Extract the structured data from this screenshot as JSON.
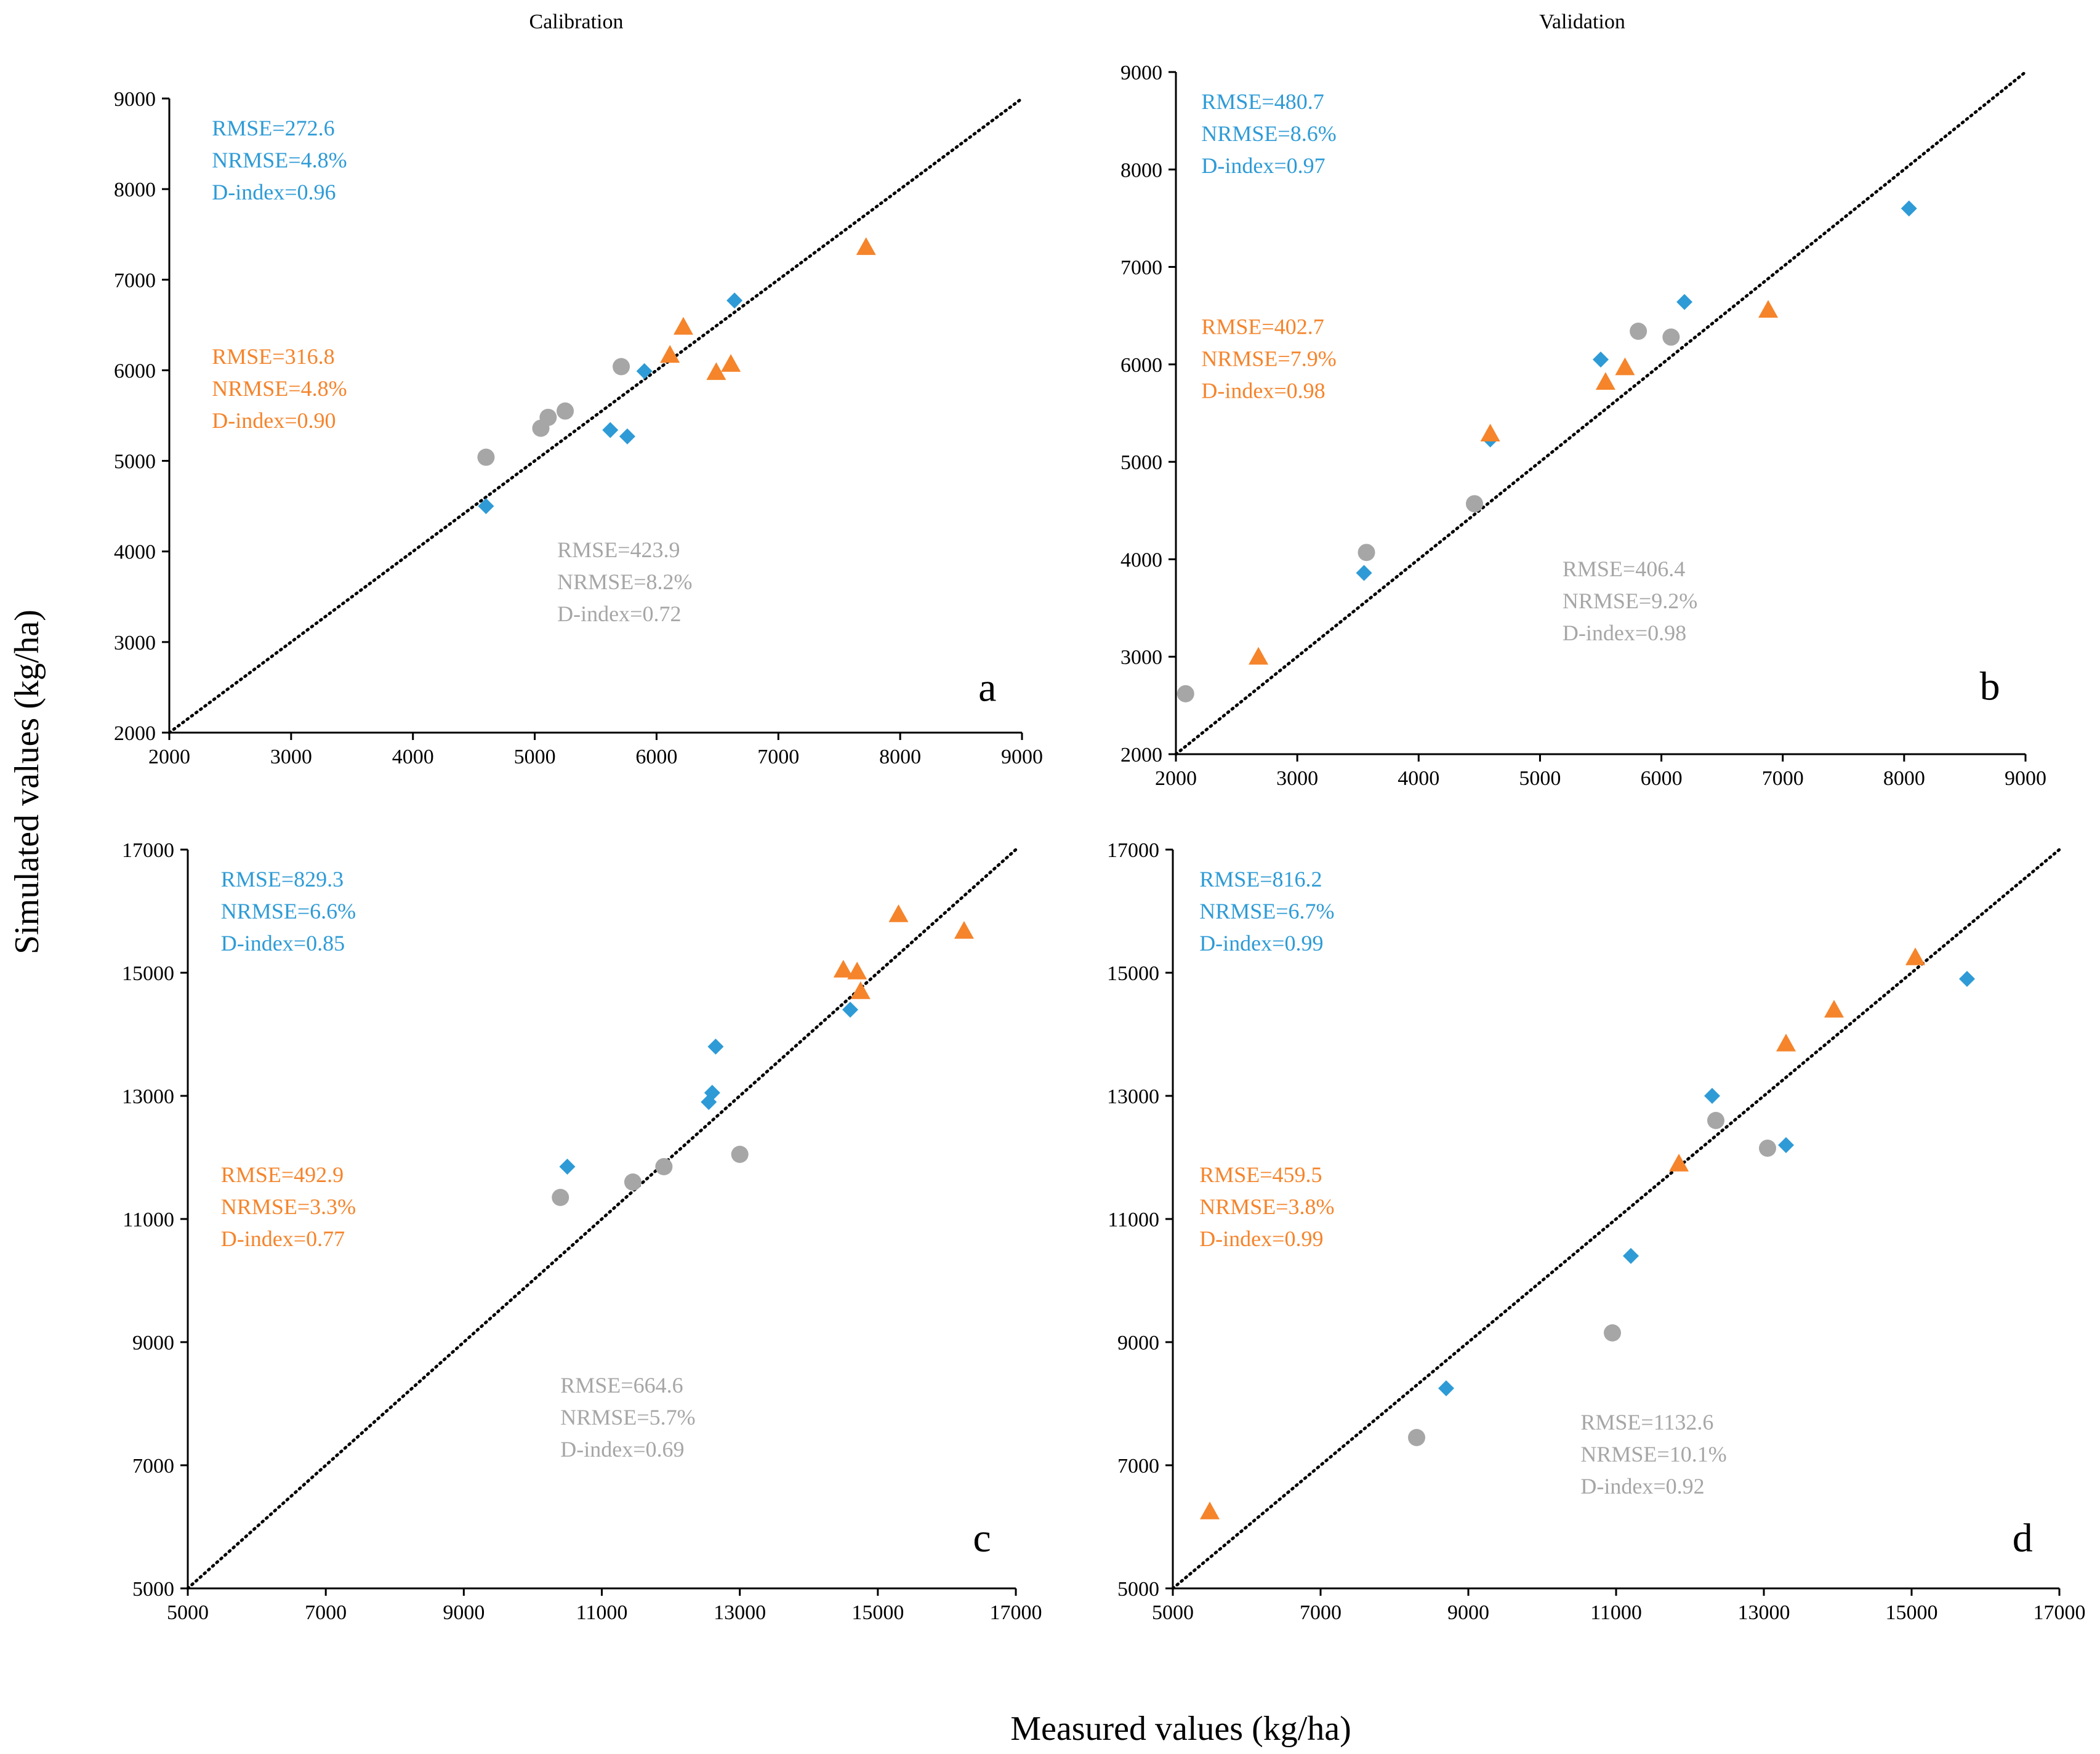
{
  "figure": {
    "xlabel": "Measured values (kg/ha)",
    "ylabel": "Simulated values (kg/ha)",
    "column_titles": [
      "Calibration",
      "Validation"
    ]
  },
  "colors": {
    "blue": "#2e9bd6",
    "orange": "#f5842b",
    "gray": "#a6a6a6",
    "axis": "#000000"
  },
  "chart_data": [
    {
      "panel": "a",
      "type": "scatter",
      "title": "Calibration",
      "xlim": [
        2000,
        9000
      ],
      "ylim": [
        2000,
        9000
      ],
      "xticks": [
        2000,
        3000,
        4000,
        5000,
        6000,
        7000,
        8000,
        9000
      ],
      "yticks": [
        2000,
        3000,
        4000,
        5000,
        6000,
        7000,
        8000,
        9000
      ],
      "one_to_one_line": true,
      "series": [
        {
          "name": "blue",
          "marker": "diamond",
          "color": "#2e9bd6",
          "x": [
            4600,
            5620,
            5760,
            5900,
            6640
          ],
          "y": [
            4500,
            5340,
            5270,
            5990,
            6770
          ]
        },
        {
          "name": "orange",
          "marker": "triangle",
          "color": "#f5842b",
          "x": [
            6110,
            6220,
            6490,
            6610,
            7720
          ],
          "y": [
            6170,
            6480,
            5980,
            6070,
            7360
          ]
        },
        {
          "name": "gray",
          "marker": "circle",
          "color": "#a6a6a6",
          "x": [
            4600,
            5050,
            5110,
            5250,
            5710
          ],
          "y": [
            5040,
            5360,
            5480,
            5550,
            6040
          ]
        }
      ],
      "stats": [
        {
          "series": "blue",
          "lines": [
            "RMSE=272.6",
            "NRMSE=4.8%",
            "D-index=0.96"
          ]
        },
        {
          "series": "orange",
          "lines": [
            "RMSE=316.8",
            "NRMSE=4.8%",
            "D-index=0.90"
          ]
        },
        {
          "series": "gray",
          "lines": [
            "RMSE=423.9",
            "NRMSE=8.2%",
            "D-index=0.72"
          ]
        }
      ]
    },
    {
      "panel": "b",
      "type": "scatter",
      "title": "Validation",
      "xlim": [
        2000,
        9000
      ],
      "ylim": [
        2000,
        9000
      ],
      "xticks": [
        2000,
        3000,
        4000,
        5000,
        6000,
        7000,
        8000,
        9000
      ],
      "yticks": [
        2000,
        3000,
        4000,
        5000,
        6000,
        7000,
        8000,
        9000
      ],
      "one_to_one_line": true,
      "series": [
        {
          "name": "blue",
          "marker": "diamond",
          "color": "#2e9bd6",
          "x": [
            3550,
            4590,
            5500,
            6190,
            8040
          ],
          "y": [
            3860,
            5230,
            6050,
            6640,
            7600
          ]
        },
        {
          "name": "orange",
          "marker": "triangle",
          "color": "#f5842b",
          "x": [
            2680,
            4590,
            5540,
            5700,
            6880
          ],
          "y": [
            3000,
            5290,
            5820,
            5970,
            6560
          ]
        },
        {
          "name": "gray",
          "marker": "circle",
          "color": "#a6a6a6",
          "x": [
            2080,
            3570,
            4460,
            5810,
            6080
          ],
          "y": [
            2620,
            4070,
            4570,
            6340,
            6280
          ]
        }
      ],
      "stats": [
        {
          "series": "blue",
          "lines": [
            "RMSE=480.7",
            "NRMSE=8.6%",
            "D-index=0.97"
          ]
        },
        {
          "series": "orange",
          "lines": [
            "RMSE=402.7",
            "NRMSE=7.9%",
            "D-index=0.98"
          ]
        },
        {
          "series": "gray",
          "lines": [
            "RMSE=406.4",
            "NRMSE=9.2%",
            "D-index=0.98"
          ]
        }
      ]
    },
    {
      "panel": "c",
      "type": "scatter",
      "title": "",
      "xlim": [
        5000,
        17000
      ],
      "ylim": [
        5000,
        17000
      ],
      "xticks": [
        5000,
        7000,
        9000,
        11000,
        13000,
        15000,
        17000
      ],
      "yticks": [
        5000,
        7000,
        9000,
        11000,
        13000,
        15000,
        17000
      ],
      "one_to_one_line": true,
      "series": [
        {
          "name": "blue",
          "marker": "diamond",
          "color": "#2e9bd6",
          "x": [
            10500,
            12550,
            12600,
            12650,
            14600
          ],
          "y": [
            11850,
            12900,
            13050,
            13800,
            14400
          ]
        },
        {
          "name": "orange",
          "marker": "triangle",
          "color": "#f5842b",
          "x": [
            14500,
            14700,
            14750,
            15300,
            16250
          ],
          "y": [
            15050,
            15020,
            14700,
            15950,
            15680
          ]
        },
        {
          "name": "gray",
          "marker": "circle",
          "color": "#a6a6a6",
          "x": [
            10400,
            11450,
            11900,
            13000
          ],
          "y": [
            11350,
            11600,
            11850,
            12050
          ]
        }
      ],
      "stats": [
        {
          "series": "blue",
          "lines": [
            "RMSE=829.3",
            "NRMSE=6.6%",
            "D-index=0.85"
          ]
        },
        {
          "series": "orange",
          "lines": [
            "RMSE=492.9",
            "NRMSE=3.3%",
            "D-index=0.77"
          ]
        },
        {
          "series": "gray",
          "lines": [
            "RMSE=664.6",
            "NRMSE=5.7%",
            "D-index=0.69"
          ]
        }
      ]
    },
    {
      "panel": "d",
      "type": "scatter",
      "title": "",
      "xlim": [
        5000,
        17000
      ],
      "ylim": [
        5000,
        17000
      ],
      "xticks": [
        5000,
        7000,
        9000,
        11000,
        13000,
        15000,
        17000
      ],
      "yticks": [
        5000,
        7000,
        9000,
        11000,
        13000,
        15000,
        17000
      ],
      "one_to_one_line": true,
      "series": [
        {
          "name": "blue",
          "marker": "diamond",
          "color": "#2e9bd6",
          "x": [
            8700,
            11200,
            12300,
            13300,
            15750
          ],
          "y": [
            8250,
            10400,
            13000,
            12200,
            14900
          ]
        },
        {
          "name": "orange",
          "marker": "triangle",
          "color": "#f5842b",
          "x": [
            5500,
            11850,
            13300,
            13950,
            15050
          ],
          "y": [
            6250,
            11900,
            13850,
            14400,
            15250
          ]
        },
        {
          "name": "gray",
          "marker": "circle",
          "color": "#a6a6a6",
          "x": [
            8300,
            10950,
            12350,
            13050
          ],
          "y": [
            7450,
            9150,
            12600,
            12150
          ]
        }
      ],
      "stats": [
        {
          "series": "blue",
          "lines": [
            "RMSE=816.2",
            "NRMSE=6.7%",
            "D-index=0.99"
          ]
        },
        {
          "series": "orange",
          "lines": [
            "RMSE=459.5",
            "NRMSE=3.8%",
            "D-index=0.99"
          ]
        },
        {
          "series": "gray",
          "lines": [
            "RMSE=1132.6",
            "NRMSE=10.1%",
            "D-index=0.92"
          ]
        }
      ]
    }
  ]
}
